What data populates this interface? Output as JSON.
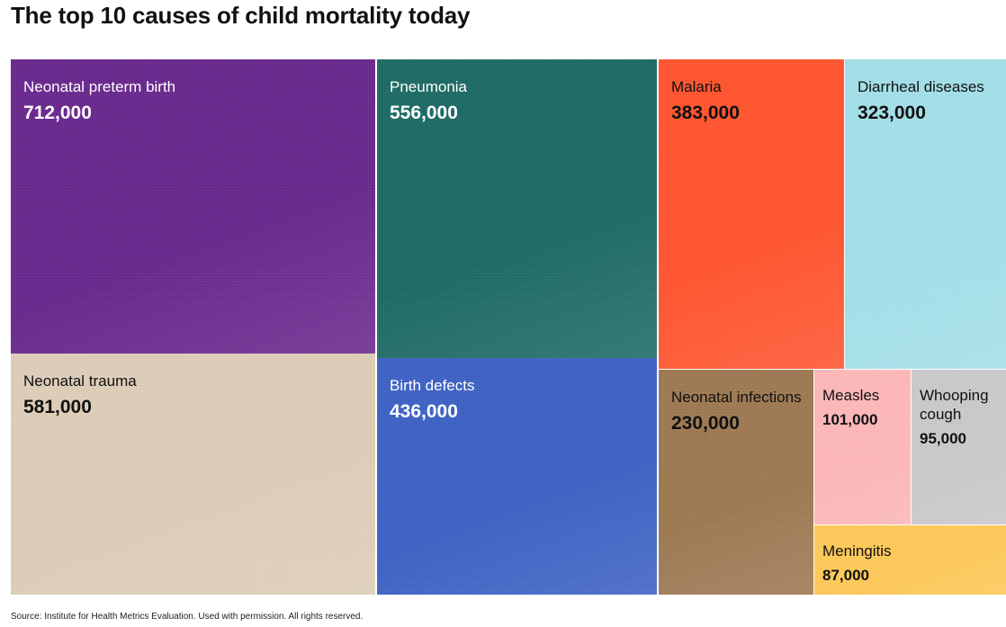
{
  "title": "The top 10 causes of child mortality today",
  "source": "Source: Institute for Health Metrics Evaluation. Used with permission. All rights reserved.",
  "chart_data": {
    "type": "treemap",
    "title": "The top 10 causes of child mortality today",
    "items": [
      {
        "label": "Neonatal preterm birth",
        "value": 712000,
        "display": "712,000",
        "color": "#6a2a8e",
        "text_color": "#ffffff"
      },
      {
        "label": "Neonatal trauma",
        "value": 581000,
        "display": "581,000",
        "color": "#ddcdb8",
        "text_color": "#111111"
      },
      {
        "label": "Pneumonia",
        "value": 556000,
        "display": "556,000",
        "color": "#1f6b66",
        "text_color": "#ffffff"
      },
      {
        "label": "Birth defects",
        "value": 436000,
        "display": "436,000",
        "color": "#3f63c4",
        "text_color": "#ffffff"
      },
      {
        "label": "Malaria",
        "value": 383000,
        "display": "383,000",
        "color": "#ff5630",
        "text_color": "#111111"
      },
      {
        "label": "Diarrheal diseases",
        "value": 323000,
        "display": "323,000",
        "color": "#a3dfe8",
        "text_color": "#111111"
      },
      {
        "label": "Neonatal infections",
        "value": 230000,
        "display": "230,000",
        "color": "#9e7a54",
        "text_color": "#111111"
      },
      {
        "label": "Measles",
        "value": 101000,
        "display": "101,000",
        "color": "#fcb7b9",
        "text_color": "#111111"
      },
      {
        "label": "Whooping cough",
        "value": 95000,
        "display": "95,000",
        "color": "#c9c9cb",
        "text_color": "#111111"
      },
      {
        "label": "Meningitis",
        "value": 87000,
        "display": "87,000",
        "color": "#fdc95a",
        "text_color": "#111111"
      }
    ]
  }
}
